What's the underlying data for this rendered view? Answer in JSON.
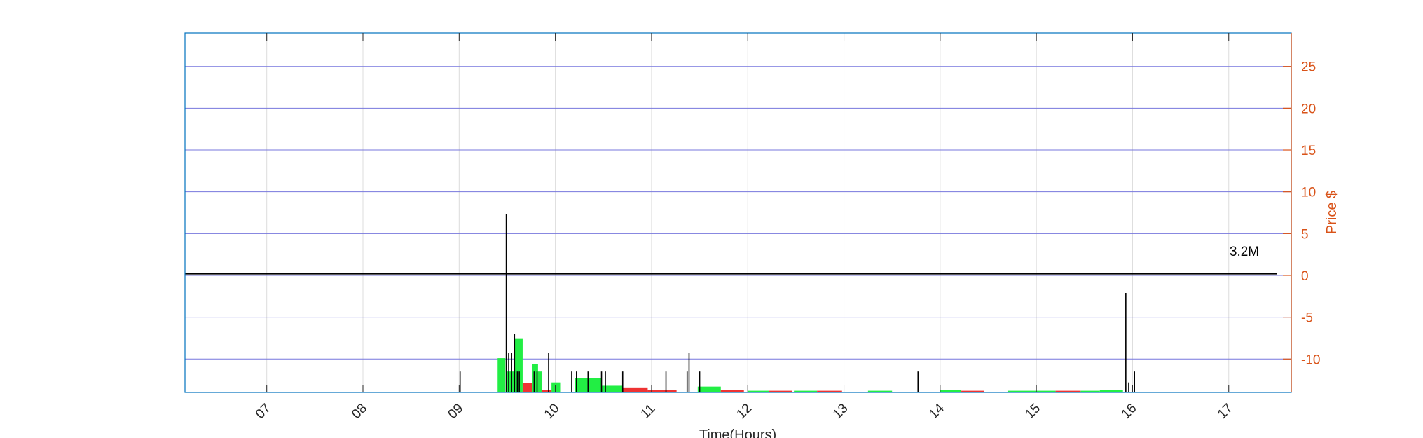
{
  "chart_data": {
    "type": "bar",
    "xlabel": "Time(Hours)",
    "ylabel": "Price $",
    "xlim": [
      6.15,
      17.65
    ],
    "ylim": [
      -14,
      29
    ],
    "x_ticks": [
      "07",
      "08",
      "09",
      "10",
      "11",
      "12",
      "13",
      "14",
      "15",
      "16",
      "17"
    ],
    "y_ticks": [
      25,
      20,
      15,
      10,
      5,
      0,
      -5,
      -10
    ],
    "grid": true,
    "annotation": "3.2M",
    "colors": {
      "price_axis": "#D95319",
      "plot_border": "#0072BD",
      "grid_horizontal": "#7777dd",
      "grid_vertical": "#dcdcdc",
      "up_volume": "#22ee44",
      "down_volume": "#ee3333",
      "spike": "#000000",
      "price_line": "#000000"
    },
    "price_level": 0.2,
    "green_bars": [
      [
        9.4,
        9.48,
        -9.9
      ],
      [
        9.5,
        9.58,
        -11.5
      ],
      [
        9.58,
        9.66,
        -7.6
      ],
      [
        9.76,
        9.82,
        -10.6
      ],
      [
        9.82,
        9.86,
        -11.5
      ],
      [
        9.96,
        10.05,
        -12.8
      ],
      [
        10.2,
        10.35,
        -12.3
      ],
      [
        10.35,
        10.48,
        -12.3
      ],
      [
        10.48,
        10.7,
        -13.2
      ],
      [
        11.0,
        11.1,
        -13.8
      ],
      [
        11.48,
        11.72,
        -13.3
      ],
      [
        12.0,
        12.22,
        -13.8
      ],
      [
        12.48,
        12.72,
        -13.8
      ],
      [
        13.25,
        13.5,
        -13.8
      ],
      [
        14.0,
        14.22,
        -13.7
      ],
      [
        14.7,
        15.2,
        -13.8
      ],
      [
        15.46,
        15.66,
        -13.8
      ],
      [
        15.66,
        15.9,
        -13.7
      ]
    ],
    "red_bars": [
      [
        9.66,
        9.76,
        -12.9
      ],
      [
        9.86,
        9.96,
        -13.7
      ],
      [
        10.7,
        10.96,
        -13.4
      ],
      [
        10.96,
        11.26,
        -13.7
      ],
      [
        11.72,
        11.96,
        -13.7
      ],
      [
        12.22,
        12.46,
        -13.8
      ],
      [
        12.72,
        12.98,
        -13.8
      ],
      [
        14.22,
        14.46,
        -13.8
      ],
      [
        15.2,
        15.46,
        -13.8
      ]
    ],
    "spikes": [
      [
        9.01,
        -11.5
      ],
      [
        9.49,
        7.3
      ],
      [
        9.515,
        -9.3
      ],
      [
        9.545,
        -9.3
      ],
      [
        9.575,
        -7.0
      ],
      [
        9.605,
        -11.5
      ],
      [
        9.625,
        -11.5
      ],
      [
        9.78,
        -11.5
      ],
      [
        9.81,
        -11.5
      ],
      [
        9.93,
        -9.3
      ],
      [
        10.17,
        -11.5
      ],
      [
        10.22,
        -11.5
      ],
      [
        10.34,
        -11.5
      ],
      [
        10.48,
        -11.5
      ],
      [
        10.52,
        -11.5
      ],
      [
        10.7,
        -11.5
      ],
      [
        11.15,
        -11.5
      ],
      [
        11.37,
        -11.5
      ],
      [
        11.39,
        -9.3
      ],
      [
        11.5,
        -11.5
      ],
      [
        13.77,
        -11.5
      ],
      [
        15.93,
        -2.1
      ],
      [
        15.96,
        -12.8
      ],
      [
        16.02,
        -11.5
      ]
    ]
  }
}
